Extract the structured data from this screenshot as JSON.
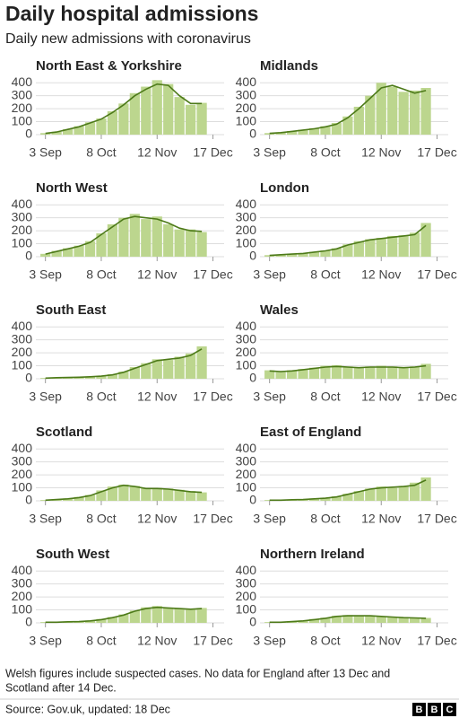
{
  "title": "Daily hospital admissions",
  "subtitle": "Daily new admissions with coronavirus",
  "notes": [
    "Welsh figures include suspected cases. No data for England after 13 Dec and",
    "Scotland after 14 Dec."
  ],
  "source": "Source: Gov.uk, updated: 18 Dec",
  "logo": [
    "B",
    "B",
    "C"
  ],
  "chart_data": [
    {
      "type": "bar",
      "title": "North East & Yorkshire",
      "x": [
        0,
        7,
        14,
        21,
        28,
        35,
        42,
        49,
        56,
        63,
        70,
        77,
        84,
        91,
        98
      ],
      "series": [
        {
          "type": "bar",
          "color": "#bcd68e",
          "values": [
            12,
            22,
            42,
            65,
            95,
            125,
            180,
            240,
            320,
            370,
            420,
            390,
            290,
            230,
            245
          ]
        },
        {
          "type": "line",
          "color": "#4d7a19",
          "values": [
            10,
            20,
            40,
            60,
            90,
            120,
            170,
            230,
            300,
            350,
            390,
            380,
            300,
            240,
            240
          ]
        }
      ],
      "xlim": [
        -6,
        112
      ],
      "ylim": [
        0,
        450
      ],
      "yticks": [
        0,
        100,
        200,
        300,
        400
      ],
      "grid": true,
      "xticks": [
        {
          "value": 0,
          "label": "3 Sep"
        },
        {
          "value": 35,
          "label": "8 Oct"
        },
        {
          "value": 70,
          "label": "12 Nov"
        },
        {
          "value": 105,
          "label": "17 Dec"
        }
      ]
    },
    {
      "type": "bar",
      "title": "Midlands",
      "x": [
        0,
        7,
        14,
        21,
        28,
        35,
        42,
        49,
        56,
        63,
        70,
        77,
        84,
        91,
        98
      ],
      "series": [
        {
          "type": "bar",
          "color": "#bcd68e",
          "values": [
            12,
            18,
            28,
            38,
            50,
            65,
            90,
            140,
            215,
            300,
            400,
            370,
            330,
            340,
            360
          ]
        },
        {
          "type": "line",
          "color": "#4d7a19",
          "values": [
            10,
            15,
            25,
            35,
            45,
            60,
            80,
            130,
            200,
            280,
            360,
            380,
            350,
            320,
            340
          ]
        }
      ],
      "xlim": [
        -6,
        112
      ],
      "ylim": [
        0,
        450
      ],
      "yticks": [
        0,
        100,
        200,
        300,
        400
      ],
      "grid": true,
      "xticks": [
        {
          "value": 0,
          "label": "3 Sep"
        },
        {
          "value": 35,
          "label": "8 Oct"
        },
        {
          "value": 70,
          "label": "12 Nov"
        },
        {
          "value": 105,
          "label": "17 Dec"
        }
      ]
    },
    {
      "type": "bar",
      "title": "North West",
      "x": [
        0,
        7,
        14,
        21,
        28,
        35,
        42,
        49,
        56,
        63,
        70,
        77,
        84,
        91,
        98
      ],
      "series": [
        {
          "type": "bar",
          "color": "#bcd68e",
          "values": [
            22,
            45,
            65,
            85,
            120,
            180,
            250,
            300,
            330,
            290,
            310,
            250,
            210,
            210,
            190
          ]
        },
        {
          "type": "line",
          "color": "#4d7a19",
          "values": [
            20,
            40,
            60,
            80,
            110,
            170,
            230,
            290,
            310,
            300,
            290,
            260,
            220,
            200,
            195
          ]
        }
      ],
      "xlim": [
        -6,
        112
      ],
      "ylim": [
        0,
        450
      ],
      "yticks": [
        0,
        100,
        200,
        300,
        400
      ],
      "grid": true,
      "xticks": [
        {
          "value": 0,
          "label": "3 Sep"
        },
        {
          "value": 35,
          "label": "8 Oct"
        },
        {
          "value": 70,
          "label": "12 Nov"
        },
        {
          "value": 105,
          "label": "17 Dec"
        }
      ]
    },
    {
      "type": "bar",
      "title": "London",
      "x": [
        0,
        7,
        14,
        21,
        28,
        35,
        42,
        49,
        56,
        63,
        70,
        77,
        84,
        91,
        98
      ],
      "series": [
        {
          "type": "bar",
          "color": "#bcd68e",
          "values": [
            12,
            16,
            22,
            28,
            38,
            48,
            65,
            95,
            120,
            135,
            145,
            160,
            165,
            185,
            260
          ]
        },
        {
          "type": "line",
          "color": "#4d7a19",
          "values": [
            10,
            15,
            20,
            25,
            35,
            45,
            60,
            90,
            110,
            130,
            140,
            150,
            160,
            170,
            240
          ]
        }
      ],
      "xlim": [
        -6,
        112
      ],
      "ylim": [
        0,
        450
      ],
      "yticks": [
        0,
        100,
        200,
        300,
        400
      ],
      "grid": true,
      "xticks": [
        {
          "value": 0,
          "label": "3 Sep"
        },
        {
          "value": 35,
          "label": "8 Oct"
        },
        {
          "value": 70,
          "label": "12 Nov"
        },
        {
          "value": 105,
          "label": "17 Dec"
        }
      ]
    },
    {
      "type": "bar",
      "title": "South East",
      "x": [
        0,
        7,
        14,
        21,
        28,
        35,
        42,
        49,
        56,
        63,
        70,
        77,
        84,
        91,
        98
      ],
      "series": [
        {
          "type": "bar",
          "color": "#bcd68e",
          "values": [
            6,
            9,
            12,
            14,
            18,
            22,
            35,
            55,
            90,
            120,
            150,
            145,
            170,
            195,
            250
          ]
        },
        {
          "type": "line",
          "color": "#4d7a19",
          "values": [
            5,
            8,
            10,
            12,
            15,
            20,
            30,
            50,
            80,
            110,
            140,
            150,
            160,
            180,
            230
          ]
        }
      ],
      "xlim": [
        -6,
        112
      ],
      "ylim": [
        0,
        450
      ],
      "yticks": [
        0,
        100,
        200,
        300,
        400
      ],
      "grid": true,
      "xticks": [
        {
          "value": 0,
          "label": "3 Sep"
        },
        {
          "value": 35,
          "label": "8 Oct"
        },
        {
          "value": 70,
          "label": "12 Nov"
        },
        {
          "value": 105,
          "label": "17 Dec"
        }
      ]
    },
    {
      "type": "bar",
      "title": "Wales",
      "x": [
        0,
        7,
        14,
        21,
        28,
        35,
        42,
        49,
        56,
        63,
        70,
        77,
        84,
        91,
        98
      ],
      "series": [
        {
          "type": "bar",
          "color": "#bcd68e",
          "values": [
            65,
            50,
            65,
            75,
            85,
            100,
            105,
            95,
            90,
            95,
            100,
            95,
            90,
            95,
            115
          ]
        },
        {
          "type": "line",
          "color": "#4d7a19",
          "values": [
            60,
            55,
            60,
            70,
            80,
            90,
            95,
            90,
            85,
            90,
            90,
            90,
            85,
            90,
            100
          ]
        }
      ],
      "xlim": [
        -6,
        112
      ],
      "ylim": [
        0,
        450
      ],
      "yticks": [
        0,
        100,
        200,
        300,
        400
      ],
      "grid": true,
      "xticks": [
        {
          "value": 0,
          "label": "3 Sep"
        },
        {
          "value": 35,
          "label": "8 Oct"
        },
        {
          "value": 70,
          "label": "12 Nov"
        },
        {
          "value": 105,
          "label": "17 Dec"
        }
      ]
    },
    {
      "type": "bar",
      "title": "Scotland",
      "x": [
        0,
        7,
        14,
        21,
        28,
        35,
        42,
        49,
        56,
        63,
        70,
        77,
        84,
        91,
        98
      ],
      "series": [
        {
          "type": "bar",
          "color": "#bcd68e",
          "values": [
            6,
            12,
            18,
            30,
            45,
            80,
            110,
            125,
            115,
            100,
            100,
            95,
            85,
            75,
            65
          ]
        },
        {
          "type": "line",
          "color": "#4d7a19",
          "values": [
            5,
            10,
            15,
            25,
            40,
            70,
            100,
            120,
            110,
            95,
            95,
            90,
            80,
            70,
            65
          ]
        }
      ],
      "xlim": [
        -6,
        112
      ],
      "ylim": [
        0,
        450
      ],
      "yticks": [
        0,
        100,
        200,
        300,
        400
      ],
      "grid": true,
      "xticks": [
        {
          "value": 0,
          "label": "3 Sep"
        },
        {
          "value": 35,
          "label": "8 Oct"
        },
        {
          "value": 70,
          "label": "12 Nov"
        },
        {
          "value": 105,
          "label": "17 Dec"
        }
      ]
    },
    {
      "type": "bar",
      "title": "East of England",
      "x": [
        0,
        7,
        14,
        21,
        28,
        35,
        42,
        49,
        56,
        63,
        70,
        77,
        84,
        91,
        98
      ],
      "series": [
        {
          "type": "bar",
          "color": "#bcd68e",
          "values": [
            6,
            6,
            9,
            12,
            18,
            24,
            35,
            55,
            75,
            95,
            110,
            100,
            115,
            140,
            180
          ]
        },
        {
          "type": "line",
          "color": "#4d7a19",
          "values": [
            5,
            5,
            8,
            10,
            15,
            20,
            30,
            50,
            70,
            90,
            100,
            105,
            110,
            120,
            160
          ]
        }
      ],
      "xlim": [
        -6,
        112
      ],
      "ylim": [
        0,
        450
      ],
      "yticks": [
        0,
        100,
        200,
        300,
        400
      ],
      "grid": true,
      "xticks": [
        {
          "value": 0,
          "label": "3 Sep"
        },
        {
          "value": 35,
          "label": "8 Oct"
        },
        {
          "value": 70,
          "label": "12 Nov"
        },
        {
          "value": 105,
          "label": "17 Dec"
        }
      ]
    },
    {
      "type": "bar",
      "title": "South West",
      "x": [
        0,
        7,
        14,
        21,
        28,
        35,
        42,
        49,
        56,
        63,
        70,
        77,
        84,
        91,
        98
      ],
      "series": [
        {
          "type": "bar",
          "color": "#bcd68e",
          "values": [
            6,
            6,
            9,
            12,
            18,
            30,
            45,
            65,
            95,
            120,
            130,
            115,
            110,
            105,
            115
          ]
        },
        {
          "type": "line",
          "color": "#4d7a19",
          "values": [
            5,
            5,
            8,
            10,
            15,
            25,
            40,
            60,
            90,
            110,
            120,
            115,
            110,
            105,
            110
          ]
        }
      ],
      "xlim": [
        -6,
        112
      ],
      "ylim": [
        0,
        450
      ],
      "yticks": [
        0,
        100,
        200,
        300,
        400
      ],
      "grid": true,
      "xticks": [
        {
          "value": 0,
          "label": "3 Sep"
        },
        {
          "value": 35,
          "label": "8 Oct"
        },
        {
          "value": 70,
          "label": "12 Nov"
        },
        {
          "value": 105,
          "label": "17 Dec"
        }
      ]
    },
    {
      "type": "bar",
      "title": "Northern Ireland",
      "x": [
        0,
        7,
        14,
        21,
        28,
        35,
        42,
        49,
        56,
        63,
        70,
        77,
        84,
        91,
        98
      ],
      "series": [
        {
          "type": "bar",
          "color": "#bcd68e",
          "values": [
            6,
            6,
            12,
            18,
            30,
            40,
            55,
            60,
            58,
            55,
            52,
            45,
            42,
            40,
            38
          ]
        },
        {
          "type": "line",
          "color": "#4d7a19",
          "values": [
            5,
            5,
            10,
            15,
            25,
            35,
            50,
            55,
            55,
            55,
            50,
            45,
            40,
            38,
            35
          ]
        }
      ],
      "xlim": [
        -6,
        112
      ],
      "ylim": [
        0,
        450
      ],
      "yticks": [
        0,
        100,
        200,
        300,
        400
      ],
      "grid": true,
      "xticks": [
        {
          "value": 0,
          "label": "3 Sep"
        },
        {
          "value": 35,
          "label": "8 Oct"
        },
        {
          "value": 70,
          "label": "12 Nov"
        },
        {
          "value": 105,
          "label": "17 Dec"
        }
      ]
    }
  ]
}
